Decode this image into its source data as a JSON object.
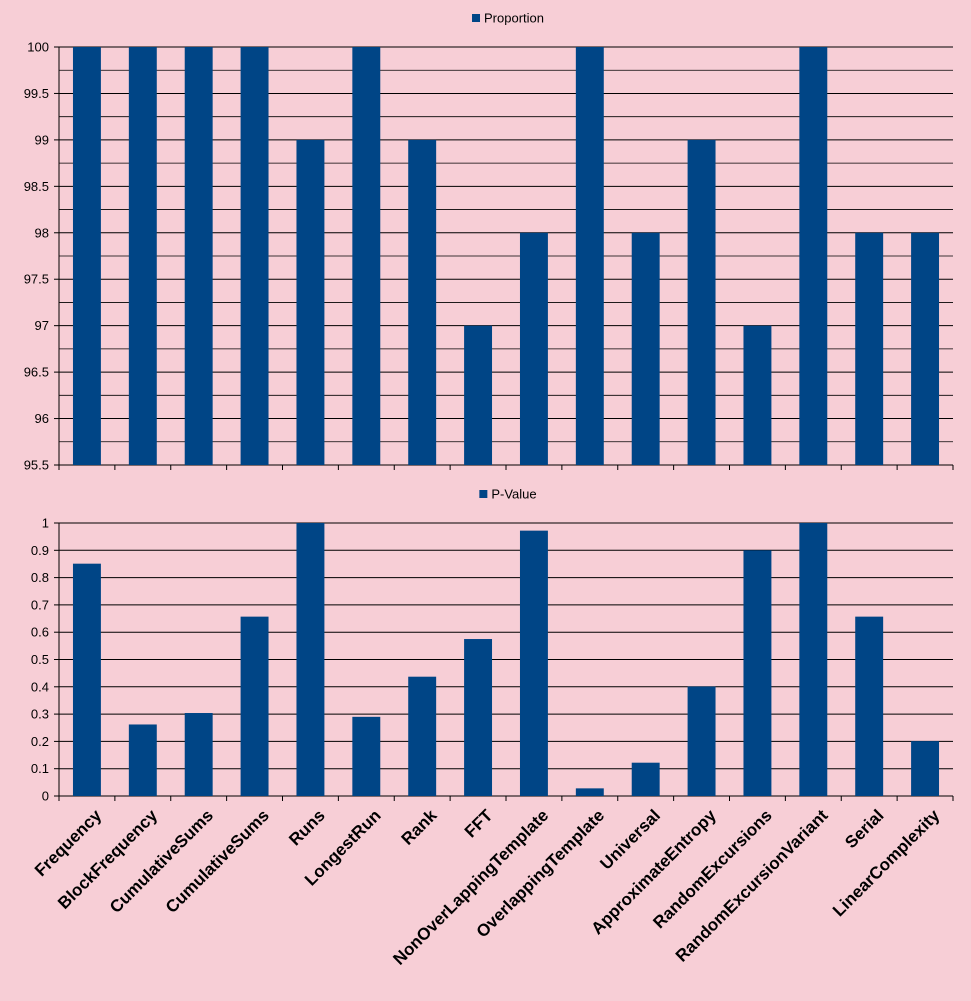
{
  "chart_data": [
    {
      "type": "bar",
      "legend_position": "top",
      "grid": true,
      "categories": [
        "Frequency",
        "BlockFrequency",
        "CumulativeSums",
        "CumulativeSums",
        "Runs",
        "LongestRun",
        "Rank",
        "FFT",
        "NonOverLappingTemplate",
        "OverlappingTemplate",
        "Universal",
        "ApproximateEntropy",
        "RandomExcursions",
        "RandomExcursionVariant",
        "Serial",
        "LinearComplexity"
      ],
      "series": [
        {
          "name": "Proportion",
          "color": "#004586",
          "values": [
            100,
            100,
            100,
            100,
            99,
            100,
            99,
            97,
            98,
            100,
            98,
            99,
            97,
            100,
            98,
            98
          ]
        }
      ],
      "ylim": [
        95.5,
        100
      ],
      "yticks": [
        "95.5",
        "96",
        "96.5",
        "97",
        "97.5",
        "98",
        "98.5",
        "99",
        "99.5",
        "100"
      ],
      "show_category_labels": false
    },
    {
      "type": "bar",
      "legend_position": "top",
      "grid": true,
      "categories": [
        "Frequency",
        "BlockFrequency",
        "CumulativeSums",
        "CumulativeSums",
        "Runs",
        "LongestRun",
        "Rank",
        "FFT",
        "NonOverLappingTemplate",
        "OverlappingTemplate",
        "Universal",
        "ApproximateEntropy",
        "RandomExcursions",
        "RandomExcursionVariant",
        "Serial",
        "LinearComplexity"
      ],
      "series": [
        {
          "name": "P-Value",
          "color": "#004586",
          "values": [
            0.851,
            0.262,
            0.304,
            0.657,
            1.0,
            0.29,
            0.437,
            0.575,
            0.972,
            0.028,
            0.122,
            0.401,
            0.9,
            1.0,
            0.657,
            0.201
          ]
        }
      ],
      "ylim": [
        0,
        1
      ],
      "yticks": [
        "0",
        "0.1",
        "0.2",
        "0.3",
        "0.4",
        "0.5",
        "0.6",
        "0.7",
        "0.8",
        "0.9",
        "1"
      ],
      "show_category_labels": true
    }
  ]
}
